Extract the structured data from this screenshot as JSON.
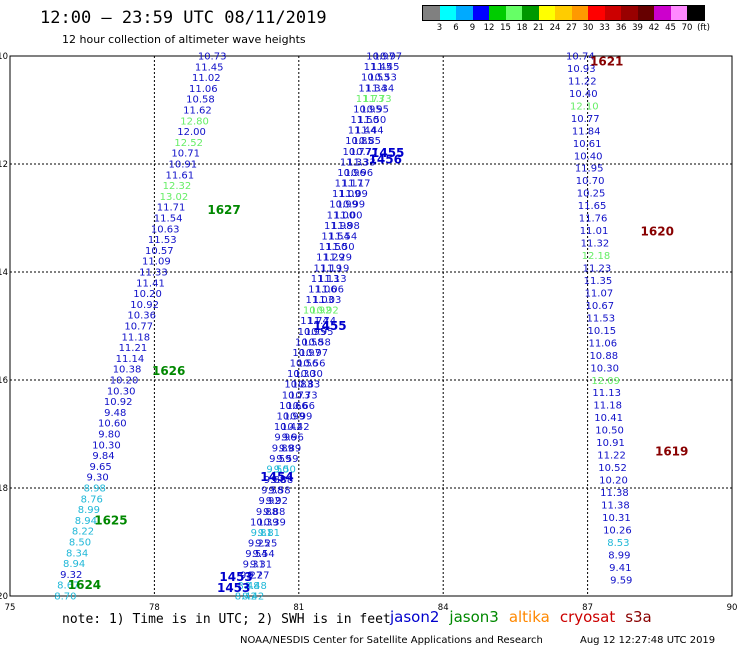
{
  "header": {
    "title": "12:00 — 23:59 UTC 08/11/2019",
    "subtitle": "12 hour collection of altimeter wave heights"
  },
  "color_scale": {
    "labels": [
      "3",
      "6",
      "9",
      "12",
      "15",
      "18",
      "21",
      "24",
      "27",
      "30",
      "33",
      "36",
      "39",
      "42",
      "45",
      "70",
      "(ft)"
    ],
    "colors": [
      "#808080",
      "#00ffff",
      "#00aaff",
      "#0000ff",
      "#00cc00",
      "#66ff66",
      "#009900",
      "#ffff00",
      "#ffcc00",
      "#ff9900",
      "#ff0000",
      "#cc0000",
      "#990000",
      "#660000",
      "#cc00cc",
      "#ff88ff",
      "#000000"
    ]
  },
  "axes": {
    "x_ticks": [
      "75",
      "78",
      "81",
      "84",
      "87",
      "90"
    ],
    "x_values": [
      75,
      78,
      81,
      84,
      87,
      90
    ],
    "y_ticks": [
      "-10",
      "-12",
      "-14",
      "-16",
      "-18",
      "-20"
    ],
    "y_values": [
      -10,
      -12,
      -14,
      -16,
      -18,
      -20
    ]
  },
  "level_colors": {
    "c": "#20b8d8",
    "b": "#1010c8",
    "g": "#66ee66"
  },
  "tracks": [
    {
      "name": "left-track",
      "lon_start": 76.15,
      "lat_start": -20.0,
      "lon_end": 79.2,
      "lat_end": -10.0,
      "color": "#1010c8",
      "values": [
        "8.70",
        "8.67",
        "9.32",
        "8.94",
        "8.34",
        "8.50",
        "8.22",
        "8.94",
        "8.99",
        "8.76",
        "8.98",
        "9.30",
        "9.65",
        "9.84",
        "10.30",
        "9.80",
        "10.60",
        "9.48",
        "10.92",
        "10.30",
        "10.20",
        "10.38",
        "11.14",
        "11.21",
        "11.18",
        "10.77",
        "10.36",
        "10.92",
        "10.20",
        "11.41",
        "11.33",
        "11.09",
        "10.57",
        "11.53",
        "10.63",
        "11.54",
        "11.71",
        "13.02",
        "12.32",
        "11.61",
        "10.91",
        "10.71",
        "12.52",
        "12.00",
        "12.80",
        "11.62",
        "10.58",
        "11.06",
        "11.02",
        "11.45",
        "10.73"
      ],
      "levels": [
        "c",
        "c",
        "b",
        "c",
        "c",
        "c",
        "c",
        "c",
        "c",
        "c",
        "c",
        "b",
        "b",
        "b",
        "b",
        "b",
        "b",
        "b",
        "b",
        "b",
        "b",
        "b",
        "b",
        "b",
        "b",
        "b",
        "b",
        "b",
        "b",
        "b",
        "b",
        "b",
        "b",
        "b",
        "b",
        "b",
        "b",
        "g",
        "g",
        "b",
        "b",
        "b",
        "g",
        "b",
        "g",
        "b",
        "b",
        "b",
        "b",
        "b",
        "b"
      ]
    },
    {
      "name": "center-track-a",
      "lon_start": 79.9,
      "lat_start": -20.0,
      "lon_end": 82.7,
      "lat_end": -10.0,
      "color": "#1010c8",
      "values": [
        "8.42",
        "8.48",
        "9.27",
        "9.31",
        "9.54",
        "9.25",
        "9.81",
        "10.39",
        "9.88",
        "9.92",
        "9.58",
        "9.88",
        "9.50",
        "9.59",
        "9.89",
        "9.96",
        "10.42",
        "10.99",
        "10.66",
        "10.73",
        "10.83",
        "10.30",
        "10.56",
        "10.97",
        "10.58",
        "10.95",
        "11.74",
        "10.92",
        "11.03",
        "11.06",
        "11.13",
        "11.19",
        "11.29",
        "11.50",
        "11.54",
        "11.98",
        "11.00",
        "10.99",
        "11.09",
        "11.17",
        "10.96",
        "11.33",
        "10.77",
        "10.85",
        "11.44",
        "11.50",
        "10.95",
        "11.73",
        "11.34",
        "10.53",
        "11.45",
        "10.97"
      ],
      "levels": [
        "c",
        "c",
        "b",
        "b",
        "b",
        "b",
        "c",
        "b",
        "b",
        "b",
        "b",
        "b",
        "c",
        "b",
        "b",
        "b",
        "b",
        "b",
        "b",
        "b",
        "b",
        "b",
        "b",
        "b",
        "b",
        "b",
        "b",
        "g",
        "b",
        "b",
        "b",
        "b",
        "b",
        "b",
        "b",
        "b",
        "b",
        "b",
        "b",
        "b",
        "b",
        "b",
        "b",
        "b",
        "b",
        "b",
        "b",
        "g",
        "b",
        "b",
        "b",
        "b"
      ]
    },
    {
      "name": "center-track-b",
      "lon_start": 80.05,
      "lat_start": -20.0,
      "lon_end": 82.85,
      "lat_end": -10.0,
      "color": "#1010c8",
      "values": [
        "8.42",
        "8.48",
        "9.27",
        "9.31",
        "9.54",
        "9.25",
        "9.81",
        "10.39",
        "9.88",
        "9.92",
        "9.58",
        "9.88",
        "9.50",
        "9.59",
        "9.89",
        "9.96",
        "10.42",
        "10.99",
        "10.66",
        "10.73",
        "10.83",
        "10.30",
        "10.56",
        "10.97",
        "10.58",
        "10.95",
        "11.74",
        "10.92",
        "11.03",
        "11.06",
        "11.13",
        "11.19",
        "11.29",
        "11.50",
        "11.54",
        "11.98",
        "11.00",
        "10.99",
        "11.09",
        "11.17",
        "10.96",
        "11.33",
        "10.77",
        "10.85",
        "11.44",
        "11.50",
        "10.95",
        "11.73",
        "11.34",
        "10.53",
        "11.45",
        "10.97"
      ],
      "levels": [
        "c",
        "c",
        "b",
        "b",
        "b",
        "b",
        "c",
        "b",
        "b",
        "b",
        "b",
        "b",
        "c",
        "b",
        "b",
        "b",
        "b",
        "b",
        "b",
        "b",
        "b",
        "b",
        "b",
        "b",
        "b",
        "b",
        "b",
        "g",
        "b",
        "b",
        "b",
        "b",
        "b",
        "b",
        "b",
        "b",
        "b",
        "b",
        "b",
        "b",
        "b",
        "b",
        "b",
        "b",
        "b",
        "b",
        "b",
        "g",
        "b",
        "b",
        "b",
        "b"
      ]
    },
    {
      "name": "right-track",
      "lon_start": 87.7,
      "lat_start": -19.7,
      "lon_end": 86.85,
      "lat_end": -10.0,
      "color": "#1010c8",
      "values": [
        "9.59",
        "9.41",
        "8.99",
        "8.53",
        "10.26",
        "10.31",
        "11.38",
        "11.38",
        "10.20",
        "10.52",
        "11.22",
        "10.91",
        "10.50",
        "10.41",
        "11.18",
        "11.13",
        "12.09",
        "10.30",
        "10.88",
        "11.06",
        "10.15",
        "11.53",
        "10.67",
        "11.07",
        "11.35",
        "11.23",
        "12.18",
        "11.32",
        "11.01",
        "11.76",
        "11.65",
        "10.25",
        "10.70",
        "11.95",
        "10.40",
        "10.61",
        "11.84",
        "10.77",
        "12.10",
        "10.40",
        "11.22",
        "10.93",
        "10.74"
      ],
      "levels": [
        "b",
        "b",
        "b",
        "c",
        "b",
        "b",
        "b",
        "b",
        "b",
        "b",
        "b",
        "b",
        "b",
        "b",
        "b",
        "b",
        "g",
        "b",
        "b",
        "b",
        "b",
        "b",
        "b",
        "b",
        "b",
        "b",
        "g",
        "b",
        "b",
        "b",
        "b",
        "b",
        "b",
        "b",
        "b",
        "b",
        "b",
        "b",
        "g",
        "b",
        "b",
        "b",
        "b"
      ]
    }
  ],
  "orbit_labels": [
    {
      "text": "1624",
      "lon": 76.2,
      "lat": -19.8,
      "color": "#008800"
    },
    {
      "text": "1625",
      "lon": 76.75,
      "lat": -18.6,
      "color": "#008800"
    },
    {
      "text": "1626",
      "lon": 77.95,
      "lat": -15.83,
      "color": "#008800"
    },
    {
      "text": "1627",
      "lon": 79.1,
      "lat": -12.85,
      "color": "#008800"
    },
    {
      "text": "1453",
      "lon": 79.3,
      "lat": -19.85,
      "color": "#0000cc"
    },
    {
      "text": "1453",
      "lon": 79.35,
      "lat": -19.65,
      "color": "#0000cc"
    },
    {
      "text": "1454",
      "lon": 80.2,
      "lat": -17.8,
      "color": "#0000cc"
    },
    {
      "text": "1455",
      "lon": 81.3,
      "lat": -15.0,
      "color": "#0000cc"
    },
    {
      "text": "1456",
      "lon": 82.45,
      "lat": -11.92,
      "color": "#0000cc"
    },
    {
      "text": "1455",
      "lon": 82.5,
      "lat": -11.8,
      "color": "#0000cc"
    },
    {
      "text": "1619",
      "lon": 88.4,
      "lat": -17.32,
      "color": "#880000"
    },
    {
      "text": "1620",
      "lon": 88.1,
      "lat": -13.25,
      "color": "#880000"
    },
    {
      "text": "1621",
      "lon": 87.05,
      "lat": -10.1,
      "color": "#880000"
    }
  ],
  "footer": {
    "note": "note: 1) Time is in UTC; 2) SWH is in feet",
    "satellites": [
      {
        "name": "jason2",
        "color": "#0000cc"
      },
      {
        "name": "jason3",
        "color": "#008800"
      },
      {
        "name": "altika",
        "color": "#ff8800"
      },
      {
        "name": "cryosat",
        "color": "#cc0000"
      },
      {
        "name": "s3a",
        "color": "#880000"
      }
    ],
    "credit": "NOAA/NESDIS Center for Satellite Applications and Research",
    "timestamp": "Aug 12 12:27:48 UTC 2019"
  }
}
